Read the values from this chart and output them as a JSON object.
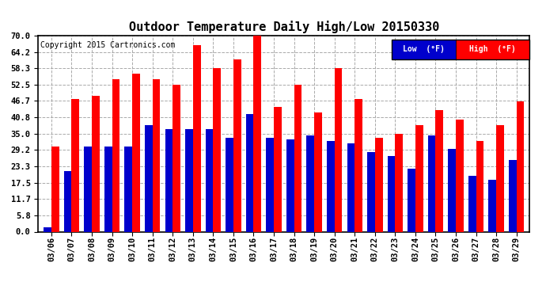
{
  "title": "Outdoor Temperature Daily High/Low 20150330",
  "copyright": "Copyright 2015 Cartronics.com",
  "dates": [
    "03/06",
    "03/07",
    "03/08",
    "03/09",
    "03/10",
    "03/11",
    "03/12",
    "03/13",
    "03/14",
    "03/15",
    "03/16",
    "03/17",
    "03/18",
    "03/19",
    "03/20",
    "03/21",
    "03/22",
    "03/23",
    "03/24",
    "03/25",
    "03/26",
    "03/27",
    "03/28",
    "03/29"
  ],
  "highs": [
    30.5,
    47.5,
    48.5,
    54.5,
    56.5,
    54.5,
    52.5,
    66.5,
    58.5,
    61.5,
    70.5,
    44.5,
    52.5,
    42.5,
    58.5,
    47.5,
    33.5,
    35.0,
    38.0,
    43.5,
    40.0,
    32.5,
    38.0,
    46.5
  ],
  "lows": [
    1.5,
    21.5,
    30.5,
    30.5,
    30.5,
    38.0,
    36.5,
    36.5,
    36.5,
    33.5,
    42.0,
    33.5,
    33.0,
    34.5,
    32.5,
    31.5,
    28.5,
    27.0,
    22.5,
    34.5,
    29.5,
    20.0,
    18.5,
    25.5
  ],
  "high_color": "#ff0000",
  "low_color": "#0000cc",
  "bg_color": "#ffffff",
  "plot_bg_color": "#ffffff",
  "ylim": [
    0.0,
    70.0
  ],
  "yticks": [
    0.0,
    5.8,
    11.7,
    17.5,
    23.3,
    29.2,
    35.0,
    40.8,
    46.7,
    52.5,
    58.3,
    64.2,
    70.0
  ],
  "grid_color": "#aaaaaa",
  "title_fontsize": 11,
  "tick_fontsize": 7.5,
  "copyright_fontsize": 7,
  "legend_low_label": "Low  (°F)",
  "legend_high_label": "High  (°F)"
}
